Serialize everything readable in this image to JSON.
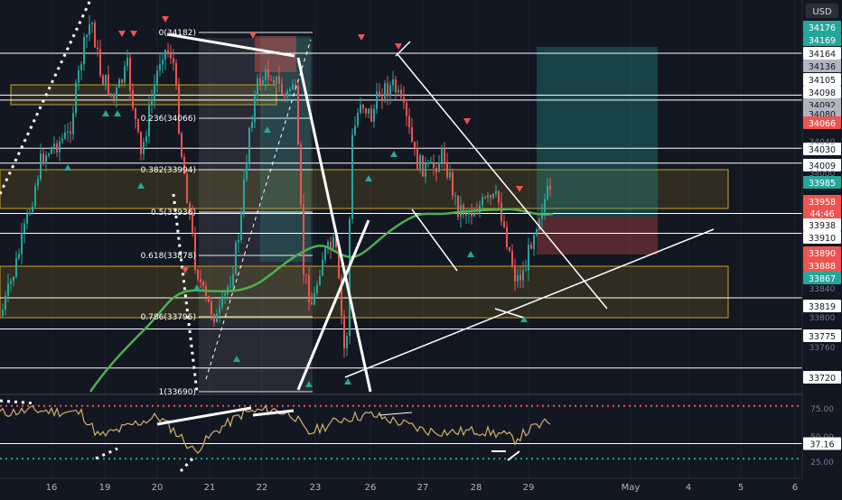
{
  "chart_data": [
    {
      "type": "candlestick",
      "title": "",
      "currency": "USD",
      "x_ticks": [
        "16",
        "19",
        "20",
        "21",
        "22",
        "23",
        "26",
        "27",
        "28",
        "29",
        "May",
        "4",
        "5",
        "6"
      ],
      "y_ticks": [
        "34040",
        "34000",
        "33840",
        "33800",
        "33760"
      ],
      "price_labels": [
        {
          "value": "34176",
          "color": "#26a69a"
        },
        {
          "value": "34169",
          "color": "#26a69a"
        },
        {
          "value": "34164",
          "color": "#ffffff",
          "kind": "hline"
        },
        {
          "value": "34136",
          "color": "#b2b5be"
        },
        {
          "value": "34105",
          "color": "#ffffff",
          "kind": "hline"
        },
        {
          "value": "34098",
          "color": "#ffffff",
          "kind": "hline"
        },
        {
          "value": "34092",
          "color": "#b2b5be"
        },
        {
          "value": "34080",
          "color": "#b2b5be"
        },
        {
          "value": "34066",
          "color": "#ef5350"
        },
        {
          "value": "34030",
          "color": "#ffffff",
          "kind": "hline"
        },
        {
          "value": "34009",
          "color": "#ffffff",
          "kind": "hline"
        },
        {
          "value": "33985",
          "color": "#26a69a"
        },
        {
          "value": "33958",
          "color": "#ef5350"
        },
        {
          "value": "44:46",
          "color": "#ef5350"
        },
        {
          "value": "33938",
          "color": "#ffffff",
          "kind": "hline"
        },
        {
          "value": "33910",
          "color": "#ffffff",
          "kind": "hline"
        },
        {
          "value": "33890",
          "color": "#ef5350"
        },
        {
          "value": "33888",
          "color": "#ef5350"
        },
        {
          "value": "33867",
          "color": "#26a69a"
        },
        {
          "value": "33819",
          "color": "#ffffff",
          "kind": "hline"
        },
        {
          "value": "33775",
          "color": "#ffffff",
          "kind": "hline"
        },
        {
          "value": "33720",
          "color": "#ffffff",
          "kind": "hline"
        }
      ],
      "fib_levels": [
        {
          "ratio": "0",
          "label": "0(34182)"
        },
        {
          "ratio": "0.236",
          "label": "0.236(34066)"
        },
        {
          "ratio": "0.382",
          "label": "0.382(33994)"
        },
        {
          "ratio": "0.5",
          "label": "0.5(33936)"
        },
        {
          "ratio": "0.618",
          "label": "0.618(33878)"
        },
        {
          "ratio": "0.786",
          "label": "0.786(33795)"
        },
        {
          "ratio": "1",
          "label": "1(33690)"
        }
      ],
      "series": [
        {
          "kind": "price",
          "x_start": "16",
          "x_end": "29"
        },
        {
          "kind": "moving-average",
          "color": "#4caf50"
        }
      ],
      "colors": {
        "up": "#26a69a",
        "down": "#ef5350",
        "zone": "#c9a227",
        "ma": "#4caf50"
      }
    },
    {
      "type": "line",
      "indicator": "oscillator",
      "y_ticks": [
        "75.00",
        "50.00",
        "25.00"
      ],
      "last_value_label": "37.16",
      "levels": [
        {
          "value": 80,
          "color": "#ef5350"
        },
        {
          "value": 37.16,
          "color": "#ffffff"
        },
        {
          "value": 20,
          "color": "#26a69a"
        }
      ],
      "ylim": [
        10,
        90
      ],
      "line_color": "#d4b06a"
    }
  ]
}
